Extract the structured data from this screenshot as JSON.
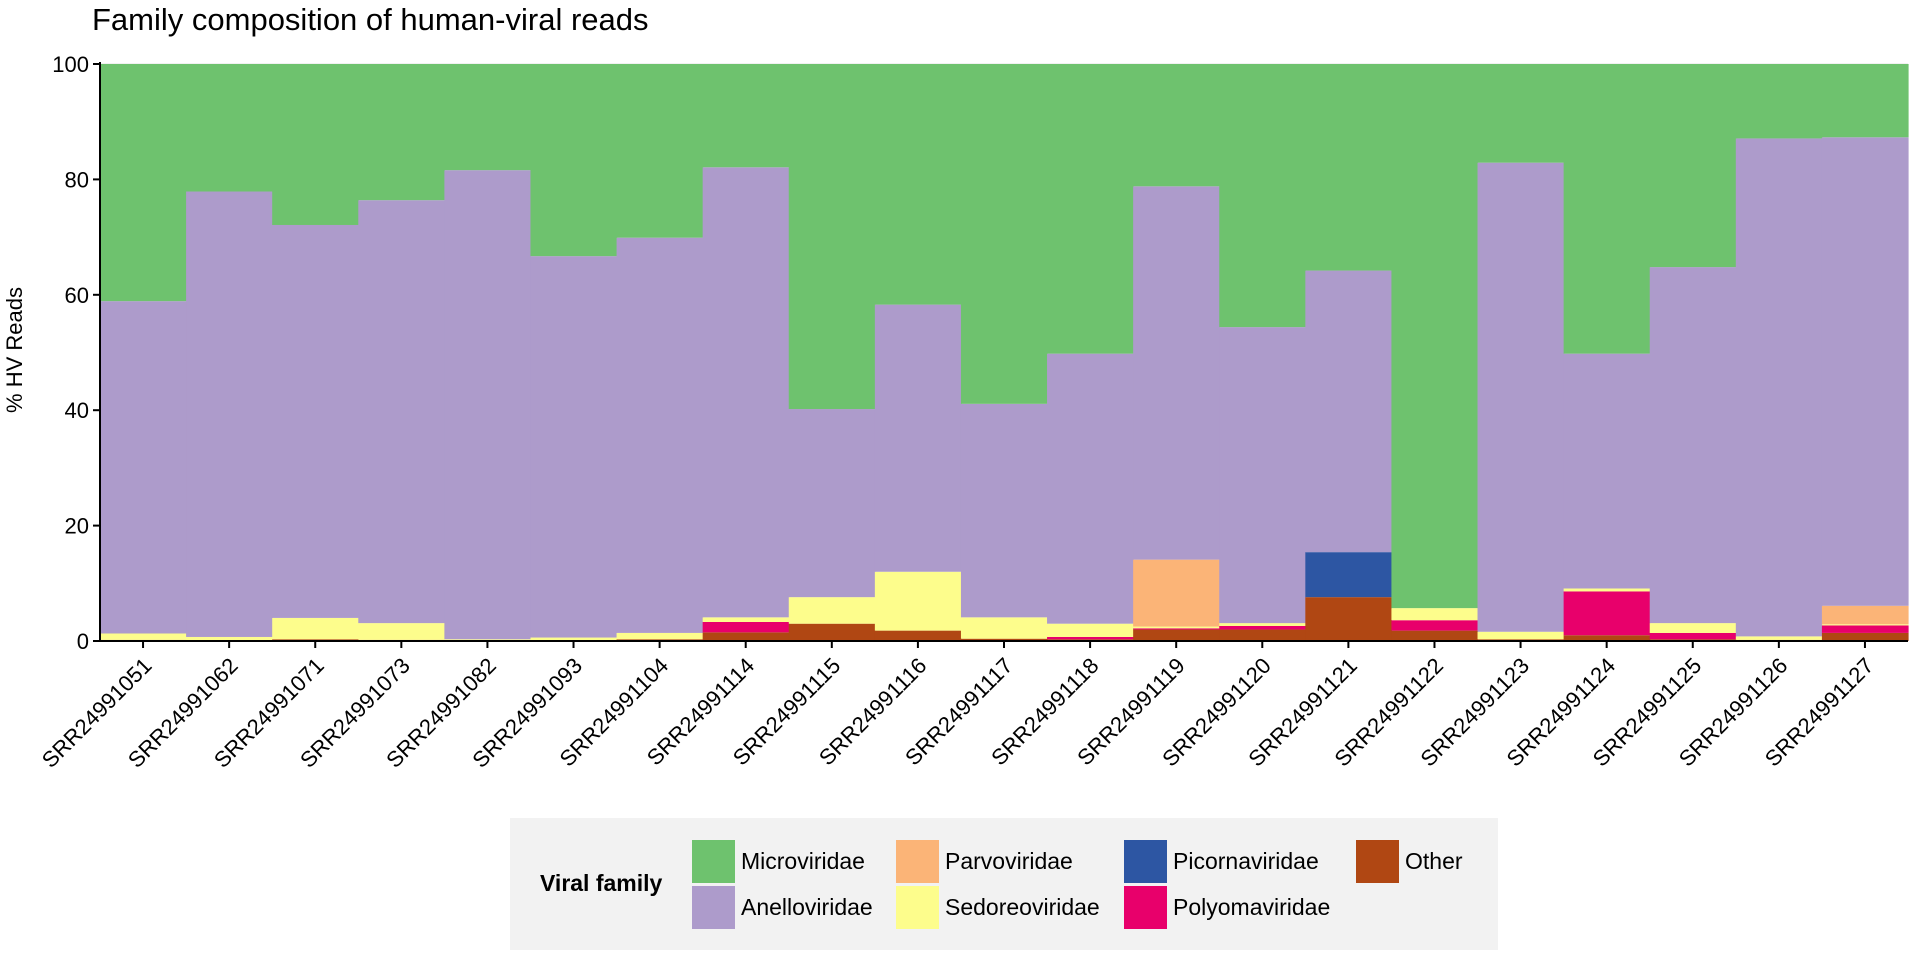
{
  "chart_data": {
    "type": "bar",
    "stacked": true,
    "title": "Family composition of human-viral reads",
    "ylabel": "% HV Reads",
    "xlabel": "",
    "ylim": [
      0,
      100
    ],
    "yticks": [
      0,
      20,
      40,
      60,
      80,
      100
    ],
    "grid": true,
    "legend_position": "bottom",
    "legend_title": "Viral family",
    "categories": [
      "SRR24991051",
      "SRR24991062",
      "SRR24991071",
      "SRR24991073",
      "SRR24991082",
      "SRR24991093",
      "SRR24991104",
      "SRR24991114",
      "SRR24991115",
      "SRR24991116",
      "SRR24991117",
      "SRR24991118",
      "SRR24991119",
      "SRR24991120",
      "SRR24991121",
      "SRR24991122",
      "SRR24991123",
      "SRR24991124",
      "SRR24991125",
      "SRR24991126",
      "SRR24991127"
    ],
    "series": [
      {
        "name": "Other",
        "color": "#b04713",
        "values": [
          0.2,
          0.1,
          0.3,
          0.2,
          0.1,
          0.1,
          0.3,
          1.5,
          3.0,
          1.8,
          0.4,
          0.3,
          2.0,
          2.0,
          7.6,
          1.8,
          0.3,
          1.0,
          0.3,
          0.2,
          1.4
        ]
      },
      {
        "name": "Polyomaviridae",
        "color": "#e8006b",
        "values": [
          0.0,
          0.0,
          0.0,
          0.0,
          0.0,
          0.0,
          0.0,
          1.8,
          0.0,
          0.0,
          0.0,
          0.4,
          0.2,
          0.6,
          0.0,
          1.8,
          0.0,
          7.6,
          1.1,
          0.0,
          1.3
        ]
      },
      {
        "name": "Picornaviridae",
        "color": "#2d56a3",
        "values": [
          0.0,
          0.0,
          0.0,
          0.0,
          0.0,
          0.0,
          0.0,
          0.0,
          0.0,
          0.0,
          0.0,
          0.0,
          0.0,
          0.0,
          7.8,
          0.0,
          0.0,
          0.0,
          0.0,
          0.0,
          0.0
        ]
      },
      {
        "name": "Sedoreoviridae",
        "color": "#fdfd8c",
        "values": [
          1.1,
          0.6,
          3.7,
          2.9,
          0.2,
          0.5,
          1.1,
          0.8,
          4.6,
          10.2,
          3.7,
          2.3,
          0.3,
          0.5,
          0.0,
          2.1,
          1.3,
          0.5,
          1.7,
          0.6,
          0.2
        ]
      },
      {
        "name": "Parvoviridae",
        "color": "#fbb477",
        "values": [
          0.0,
          0.0,
          0.0,
          0.0,
          0.0,
          0.0,
          0.0,
          0.0,
          0.0,
          0.0,
          0.0,
          0.0,
          11.6,
          0.0,
          0.0,
          0.0,
          0.0,
          0.0,
          0.0,
          0.0,
          3.2
        ]
      },
      {
        "name": "Anelloviridae",
        "color": "#ad9bcb",
        "values": [
          57.6,
          77.2,
          68.1,
          73.3,
          81.3,
          66.1,
          68.5,
          78.0,
          32.6,
          46.3,
          37.0,
          46.8,
          64.7,
          51.3,
          48.8,
          0.0,
          81.3,
          40.7,
          61.7,
          86.3,
          81.2
        ]
      },
      {
        "name": "Microviridae",
        "color": "#6ec26e",
        "values": [
          41.1,
          22.1,
          27.9,
          23.6,
          18.4,
          33.3,
          30.1,
          17.9,
          59.8,
          41.7,
          58.9,
          50.2,
          21.2,
          45.6,
          35.8,
          94.3,
          17.1,
          50.2,
          35.2,
          12.9,
          12.7
        ]
      }
    ]
  },
  "legend": {
    "title": "Viral family",
    "items": [
      {
        "label": "Microviridae",
        "color": "#6ec26e"
      },
      {
        "label": "Anelloviridae",
        "color": "#ad9bcb"
      },
      {
        "label": "Parvoviridae",
        "color": "#fbb477"
      },
      {
        "label": "Sedoreoviridae",
        "color": "#fdfd8c"
      },
      {
        "label": "Picornaviridae",
        "color": "#2d56a3"
      },
      {
        "label": "Polyomaviridae",
        "color": "#e8006b"
      },
      {
        "label": "Other",
        "color": "#b04713"
      }
    ]
  }
}
